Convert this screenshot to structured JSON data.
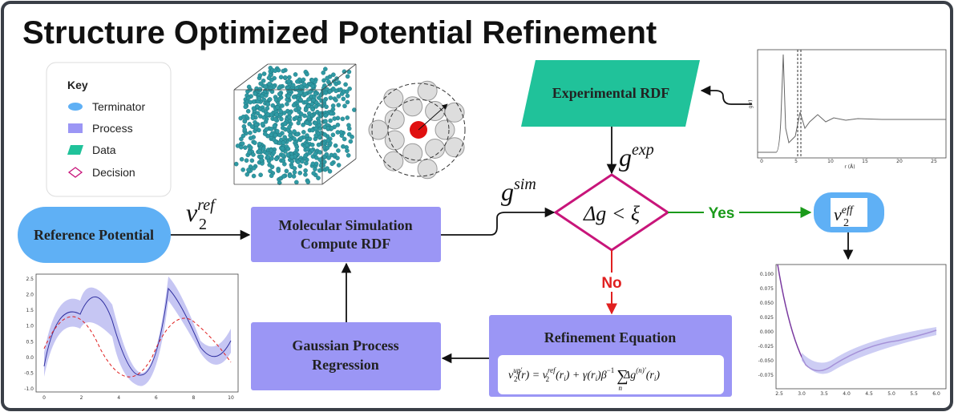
{
  "title": "Structure Optimized Potential Refinement",
  "key": {
    "title": "Key",
    "items": [
      "Terminator",
      "Process",
      "Data",
      "Decision"
    ]
  },
  "nodes": {
    "reference": "Reference Potential",
    "simulation": [
      "Molecular Simulation",
      "Compute RDF"
    ],
    "experimental": "Experimental RDF",
    "decision": "Δg < ξ",
    "refinement": "Refinement Equation",
    "gpr": [
      "Gaussian Process",
      "Regression"
    ],
    "effective": {
      "base": "v",
      "sub": "2",
      "sup": "eff"
    }
  },
  "labels": {
    "v_ref": {
      "base": "v",
      "sub": "2",
      "sup": "ref"
    },
    "g_sim": {
      "base": "g",
      "sup": "sim"
    },
    "g_exp": {
      "base": "g",
      "sup": "exp"
    },
    "yes": "Yes",
    "no": "No"
  },
  "equation": [
    "v",
    "up′",
    "2",
    "(r) = ",
    "v",
    "ref",
    "2",
    "(r",
    "i",
    ") + γ(r",
    "i",
    ")β",
    "−1",
    "∑",
    "n",
    "Δg",
    "(n)′",
    "(r",
    "i",
    ")"
  ],
  "insets": {
    "rdf": {
      "xlabel": "r (Å)",
      "ylabel": "g(r)",
      "xticks": [
        "0",
        "5",
        "10",
        "15",
        "20",
        "25"
      ]
    },
    "gp": {
      "yticks": [
        "2.5",
        "2.0",
        "1.5",
        "1.0",
        "0.5",
        "0.0",
        "-0.5",
        "-1.0"
      ],
      "xticks": [
        "0",
        "2",
        "4",
        "6",
        "8",
        "10"
      ]
    },
    "potential": {
      "yticks": [
        "0.100",
        "0.075",
        "0.050",
        "0.025",
        "0.000",
        "-0.025",
        "-0.050",
        "-0.075"
      ],
      "xticks": [
        "2.5",
        "3.0",
        "3.5",
        "4.0",
        "4.5",
        "5.0",
        "5.5",
        "6.0"
      ]
    }
  }
}
